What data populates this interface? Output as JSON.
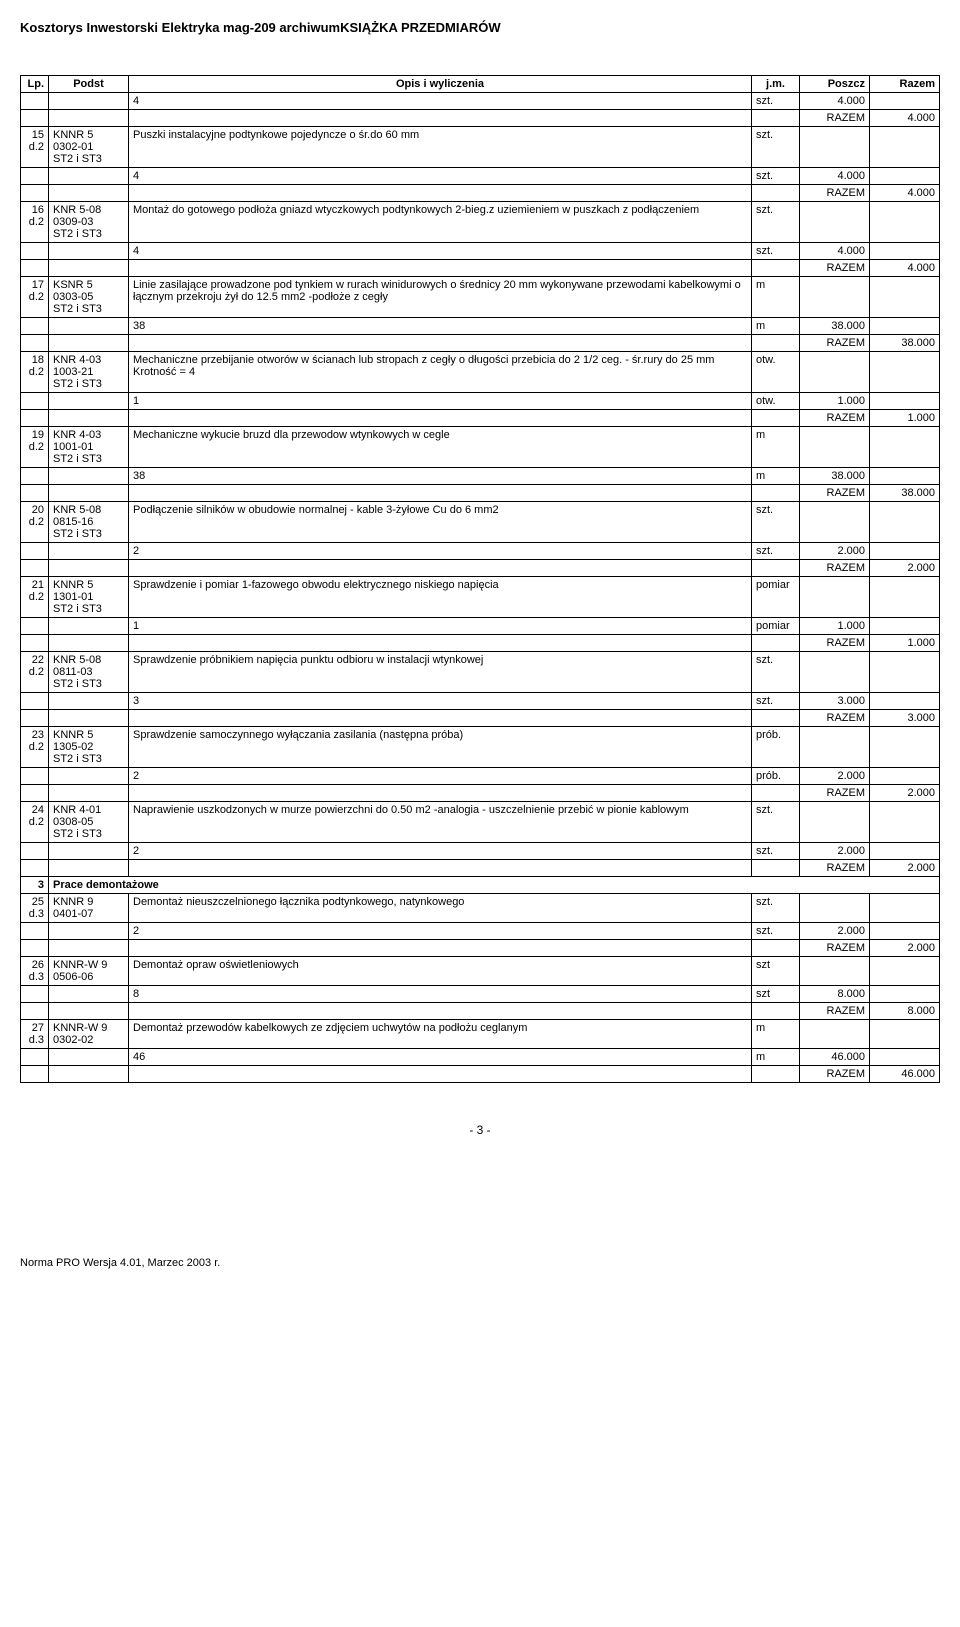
{
  "doc_title": "Kosztorys Inwestorski Elektryka mag-209 archiwumKSIĄŻKA PRZEDMIARÓW",
  "columns": [
    "Lp.",
    "Podst",
    "Opis i wyliczenia",
    "j.m.",
    "Poszcz",
    "Razem"
  ],
  "section3_title": "Prace demontażowe",
  "pre_rows": {
    "calc_val": "4",
    "calc_jm": "szt.",
    "calc_poszcz": "4.000",
    "razem_label": "RAZEM",
    "razem_val": "4.000"
  },
  "items": [
    {
      "lp": "15",
      "lp2": "d.2",
      "podst": "KNNR 5",
      "podst2": "0302-01",
      "podst3": "ST2 i ST3",
      "opis": "Puszki instalacyjne podtynkowe pojedyncze o śr.do 60 mm",
      "jm": "szt.",
      "calc_val": "4",
      "calc_jm": "szt.",
      "calc_poszcz": "4.000",
      "razem_label": "RAZEM",
      "razem_val": "4.000"
    },
    {
      "lp": "16",
      "lp2": "d.2",
      "podst": "KNR 5-08",
      "podst2": "0309-03",
      "podst3": "ST2 i ST3",
      "opis": "Montaż do gotowego podłoża gniazd wtyczkowych podtynkowych 2-bieg.z uziemieniem w puszkach z podłączeniem",
      "jm": "szt.",
      "calc_val": "4",
      "calc_jm": "szt.",
      "calc_poszcz": "4.000",
      "razem_label": "RAZEM",
      "razem_val": "4.000"
    },
    {
      "lp": "17",
      "lp2": "d.2",
      "podst": "KSNR 5",
      "podst2": "0303-05",
      "podst3": "ST2 i ST3",
      "opis": "Linie zasilające prowadzone pod tynkiem w rurach winidurowych o średnicy 20 mm wykonywane przewodami kabelkowymi o łącznym przekroju żył do 12.5 mm2 -podłoże z cegły",
      "jm": "m",
      "calc_val": "38",
      "calc_jm": "m",
      "calc_poszcz": "38.000",
      "razem_label": "RAZEM",
      "razem_val": "38.000"
    },
    {
      "lp": "18",
      "lp2": "d.2",
      "podst": "KNR 4-03",
      "podst2": "1003-21",
      "podst3": "ST2 i ST3",
      "opis": "Mechaniczne przebijanie otworów w ścianach lub stropach z cegły o długości przebicia do 2 1/2 ceg. - śr.rury do 25 mm\nKrotność = 4",
      "jm": "otw.",
      "calc_val": "1",
      "calc_jm": "otw.",
      "calc_poszcz": "1.000",
      "razem_label": "RAZEM",
      "razem_val": "1.000"
    },
    {
      "lp": "19",
      "lp2": "d.2",
      "podst": "KNR 4-03",
      "podst2": "1001-01",
      "podst3": "ST2 i ST3",
      "opis": "Mechaniczne wykucie bruzd dla przewodow wtynkowych w cegle",
      "jm": "m",
      "calc_val": "38",
      "calc_jm": "m",
      "calc_poszcz": "38.000",
      "razem_label": "RAZEM",
      "razem_val": "38.000"
    },
    {
      "lp": "20",
      "lp2": "d.2",
      "podst": "KNR 5-08",
      "podst2": "0815-16",
      "podst3": "ST2 i ST3",
      "opis": "Podłączenie silników w obudowie normalnej - kable 3-żyłowe Cu do 6 mm2",
      "jm": "szt.",
      "calc_val": "2",
      "calc_jm": "szt.",
      "calc_poszcz": "2.000",
      "razem_label": "RAZEM",
      "razem_val": "2.000"
    },
    {
      "lp": "21",
      "lp2": "d.2",
      "podst": "KNNR 5",
      "podst2": "1301-01",
      "podst3": "ST2 i ST3",
      "opis": "Sprawdzenie i pomiar 1-fazowego obwodu elektrycznego niskiego napięcia",
      "jm": "pomiar",
      "calc_val": "1",
      "calc_jm": "pomiar",
      "calc_poszcz": "1.000",
      "razem_label": "RAZEM",
      "razem_val": "1.000"
    },
    {
      "lp": "22",
      "lp2": "d.2",
      "podst": "KNR 5-08",
      "podst2": "0811-03",
      "podst3": "ST2 i ST3",
      "opis": "Sprawdzenie próbnikiem napięcia punktu odbioru w instalacji wtynkowej",
      "jm": "szt.",
      "calc_val": "3",
      "calc_jm": "szt.",
      "calc_poszcz": "3.000",
      "razem_label": "RAZEM",
      "razem_val": "3.000"
    },
    {
      "lp": "23",
      "lp2": "d.2",
      "podst": "KNNR 5",
      "podst2": "1305-02",
      "podst3": "ST2 i ST3",
      "opis": "Sprawdzenie samoczynnego wyłączania zasilania (następna próba)",
      "jm": "prób.",
      "calc_val": "2",
      "calc_jm": "prób.",
      "calc_poszcz": "2.000",
      "razem_label": "RAZEM",
      "razem_val": "2.000"
    },
    {
      "lp": "24",
      "lp2": "d.2",
      "podst": "KNR 4-01",
      "podst2": "0308-05",
      "podst3": "ST2 i ST3",
      "opis": "Naprawienie uszkodzonych w murze powierzchni do 0.50 m2 -analogia - uszczelnienie przebić w pionie kablowym",
      "jm": "szt.",
      "calc_val": "2",
      "calc_jm": "szt.",
      "calc_poszcz": "2.000",
      "razem_label": "RAZEM",
      "razem_val": "2.000"
    }
  ],
  "section3_lp": "3",
  "items3": [
    {
      "lp": "25",
      "lp2": "d.3",
      "podst": "KNNR 9",
      "podst2": "0401-07",
      "opis": "Demontaż nieuszczelnionego łącznika podtynkowego, natynkowego",
      "jm": "szt.",
      "calc_val": "2",
      "calc_jm": "szt.",
      "calc_poszcz": "2.000",
      "razem_label": "RAZEM",
      "razem_val": "2.000"
    },
    {
      "lp": "26",
      "lp2": "d.3",
      "podst": "KNNR-W 9",
      "podst2": "0506-06",
      "opis": "Demontaż opraw oświetleniowych",
      "jm": "szt",
      "calc_val": "8",
      "calc_jm": "szt",
      "calc_poszcz": "8.000",
      "razem_label": "RAZEM",
      "razem_val": "8.000"
    },
    {
      "lp": "27",
      "lp2": "d.3",
      "podst": "KNNR-W 9",
      "podst2": "0302-02",
      "opis": "Demontaż przewodów kabelkowych ze zdjęciem uchwytów na podłożu ceglanym",
      "jm": "m",
      "calc_val": "46",
      "calc_jm": "m",
      "calc_poszcz": "46.000",
      "razem_label": "RAZEM",
      "razem_val": "46.000"
    }
  ],
  "page_num": "- 3 -",
  "footer": "Norma PRO Wersja 4.01, Marzec 2003 r."
}
